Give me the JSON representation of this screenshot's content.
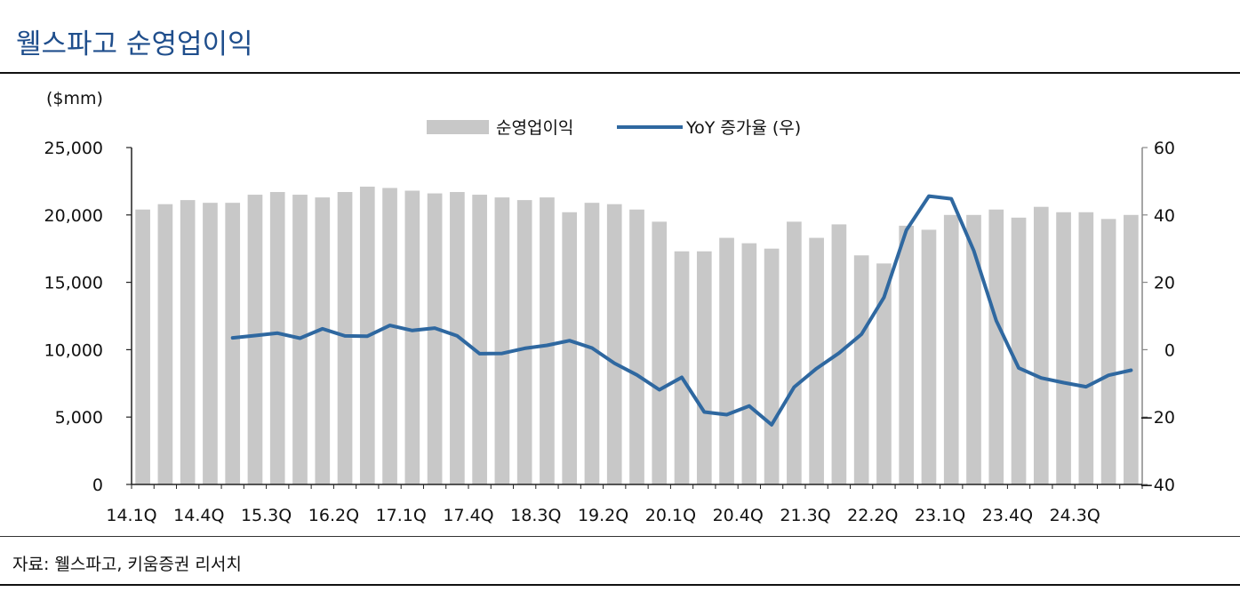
{
  "title": "웰스파고 순영업이익",
  "source": "자료: 웰스파고, 키움증권 리서치",
  "chart_data": {
    "type": "bar+line",
    "unit_label": "($mm)",
    "categories": [
      "14.1Q",
      "14.2Q",
      "14.3Q",
      "14.4Q",
      "15.1Q",
      "15.2Q",
      "15.3Q",
      "15.4Q",
      "16.1Q",
      "16.2Q",
      "16.3Q",
      "16.4Q",
      "17.1Q",
      "17.2Q",
      "17.3Q",
      "17.4Q",
      "18.1Q",
      "18.2Q",
      "18.3Q",
      "18.4Q",
      "19.1Q",
      "19.2Q",
      "19.3Q",
      "19.4Q",
      "20.1Q",
      "20.2Q",
      "20.3Q",
      "20.4Q",
      "21.1Q",
      "21.2Q",
      "21.3Q",
      "21.4Q",
      "22.1Q",
      "22.2Q",
      "22.3Q",
      "22.4Q",
      "23.1Q",
      "23.2Q",
      "23.3Q",
      "23.4Q",
      "24.1Q",
      "24.2Q",
      "24.3Q",
      "24.4Q",
      "25.1Q"
    ],
    "xtick_labels": [
      "14.1Q",
      "14.4Q",
      "15.3Q",
      "16.2Q",
      "17.1Q",
      "17.4Q",
      "18.3Q",
      "19.2Q",
      "20.1Q",
      "20.4Q",
      "21.3Q",
      "22.2Q",
      "23.1Q",
      "23.4Q",
      "24.3Q"
    ],
    "series": [
      {
        "name": "순영업이익",
        "type": "bar",
        "axis": "left",
        "color": "#c8c8c8",
        "values": [
          20400,
          20800,
          21100,
          20900,
          20900,
          21500,
          21700,
          21500,
          21300,
          21700,
          22100,
          22000,
          21800,
          21600,
          21700,
          21500,
          21300,
          21100,
          21300,
          20200,
          20900,
          20800,
          20400,
          19500,
          17300,
          17300,
          18300,
          17900,
          17500,
          19500,
          18300,
          19300,
          17000,
          16400,
          19200,
          18900,
          20000,
          20000,
          20400,
          19800,
          20600,
          20200,
          20200,
          19700,
          20000
        ]
      },
      {
        "name": "YoY 증가율 (우)",
        "type": "line",
        "axis": "right",
        "color": "#2f68a0",
        "values": [
          null,
          null,
          null,
          null,
          3.5,
          4.2,
          4.9,
          3.4,
          6.2,
          4.1,
          4.0,
          7.2,
          5.7,
          6.4,
          4.1,
          -1.2,
          -1.1,
          0.4,
          1.3,
          2.7,
          0.5,
          -4.0,
          -7.5,
          -11.9,
          -8.2,
          -18.5,
          -19.3,
          -16.7,
          -22.3,
          -11.1,
          -5.6,
          -1.0,
          4.6,
          15.5,
          35.5,
          45.6,
          44.8,
          29.4,
          8.6,
          -5.4,
          -8.4,
          -9.8,
          -11.0,
          -7.6,
          -6.1
        ]
      }
    ],
    "y_left": {
      "min": 0,
      "max": 25000,
      "ticks": [
        "0",
        "5,000",
        "10,000",
        "15,000",
        "20,000",
        "25,000"
      ]
    },
    "y_right": {
      "min": -40,
      "max": 60,
      "ticks": [
        "-40",
        "-20",
        "0",
        "20",
        "40",
        "60"
      ]
    },
    "legend": {
      "position": "top-center"
    },
    "grid": false
  }
}
